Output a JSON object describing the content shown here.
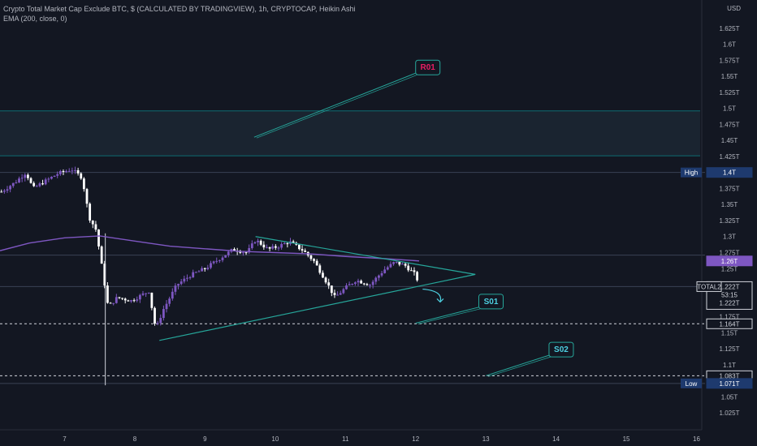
{
  "legend": {
    "title": "Crypto Total Market Cap Exclude BTC, $ (CALCULATED BY TRADINGVIEW), 1h, CRYPTOCAP, Heikin Ashi",
    "indicator": "EMA (200, close, 0)"
  },
  "colors": {
    "background": "#131722",
    "candle_up": "#7e57c2",
    "candle_down": "#ffffff",
    "ema": "#7e57c2",
    "trend": "#26a69a",
    "zone": "#0e6b73",
    "r01": "#e91e63",
    "s_label": "#4dd0e1"
  },
  "chart_data": {
    "type": "candlestick",
    "y_axis": {
      "unit": "USD",
      "range": [
        1.005,
        1.65
      ],
      "ticks": [
        "1.625T",
        "1.6T",
        "1.575T",
        "1.55T",
        "1.525T",
        "1.5T",
        "1.475T",
        "1.45T",
        "1.425T",
        "1.4T",
        "1.375T",
        "1.35T",
        "1.325T",
        "1.3T",
        "1.275T",
        "1.25T",
        "1.225T",
        "1.2T",
        "1.175T",
        "1.15T",
        "1.125T",
        "1.1T",
        "1.075T",
        "1.05T",
        "1.025T"
      ],
      "tick_values": [
        1.625,
        1.6,
        1.575,
        1.55,
        1.525,
        1.5,
        1.475,
        1.45,
        1.425,
        1.4,
        1.375,
        1.35,
        1.325,
        1.3,
        1.275,
        1.25,
        1.225,
        1.2,
        1.175,
        1.15,
        1.125,
        1.1,
        1.075,
        1.05,
        1.025
      ]
    },
    "x_axis": {
      "ticks": [
        "7",
        "8",
        "9",
        "10",
        "11",
        "12",
        "13",
        "14",
        "15",
        "16"
      ],
      "tick_positions": [
        7,
        8,
        9,
        10,
        11,
        12,
        13,
        14,
        15,
        16
      ],
      "range": [
        6.08,
        16.55
      ]
    },
    "candles_keypoints": [
      [
        6.1,
        1.37
      ],
      [
        6.3,
        1.385
      ],
      [
        6.45,
        1.4
      ],
      [
        6.55,
        1.375
      ],
      [
        6.9,
        1.398
      ],
      [
        7.1,
        1.405
      ],
      [
        7.25,
        1.392
      ],
      [
        7.35,
        1.33
      ],
      [
        7.45,
        1.31
      ],
      [
        7.55,
        1.24
      ],
      [
        7.62,
        1.19
      ],
      [
        7.75,
        1.205
      ],
      [
        7.95,
        1.2
      ],
      [
        8.2,
        1.215
      ],
      [
        8.3,
        1.155
      ],
      [
        8.4,
        1.185
      ],
      [
        8.6,
        1.225
      ],
      [
        8.8,
        1.24
      ],
      [
        9.0,
        1.25
      ],
      [
        9.2,
        1.265
      ],
      [
        9.4,
        1.28
      ],
      [
        9.6,
        1.275
      ],
      [
        9.72,
        1.295
      ],
      [
        9.9,
        1.28
      ],
      [
        10.05,
        1.285
      ],
      [
        10.2,
        1.292
      ],
      [
        10.4,
        1.278
      ],
      [
        10.55,
        1.262
      ],
      [
        10.7,
        1.235
      ],
      [
        10.85,
        1.205
      ],
      [
        11.0,
        1.22
      ],
      [
        11.15,
        1.232
      ],
      [
        11.35,
        1.225
      ],
      [
        11.55,
        1.248
      ],
      [
        11.7,
        1.26
      ],
      [
        11.85,
        1.255
      ],
      [
        12.0,
        1.24
      ],
      [
        12.06,
        1.222
      ]
    ],
    "ema": {
      "name": "EMA (200, close, 0)",
      "x": [
        6.08,
        6.5,
        7.0,
        7.5,
        8.0,
        8.5,
        9.0,
        9.5,
        10.0,
        10.5,
        11.0,
        11.5,
        12.05
      ],
      "y": [
        1.278,
        1.29,
        1.298,
        1.301,
        1.293,
        1.285,
        1.281,
        1.277,
        1.275,
        1.273,
        1.269,
        1.266,
        1.262
      ]
    },
    "trendlines": [
      {
        "from": [
          9.72,
          1.3
        ],
        "to": [
          12.85,
          1.241
        ]
      },
      {
        "from": [
          8.35,
          1.138
        ],
        "to": [
          12.85,
          1.241
        ]
      }
    ],
    "zone": {
      "y_top": 1.496,
      "y_bottom": 1.426
    },
    "horizontal_lines": [
      {
        "y": 1.4,
        "style": "solid"
      },
      {
        "y": 1.271,
        "style": "solid"
      },
      {
        "y": 1.222,
        "style": "solid"
      },
      {
        "y": 1.164,
        "style": "dashed"
      },
      {
        "y": 1.083,
        "style": "dashed"
      },
      {
        "y": 1.071,
        "style": "solid"
      }
    ],
    "price_tags": [
      {
        "label": "High",
        "value": "1.4T",
        "y": 1.4
      },
      {
        "label": "",
        "value": "1.26T",
        "y": 1.262
      },
      {
        "label": "TOTAL2",
        "value": "1.222T",
        "extra": "53:15",
        "extra2": "1.222T",
        "y": 1.222
      },
      {
        "label": "",
        "value": "1.164T",
        "y": 1.164
      },
      {
        "label": "",
        "value": "1.083T",
        "y": 1.083
      },
      {
        "label": "Low",
        "value": "1.071T",
        "y": 1.071
      }
    ],
    "annotations": [
      {
        "text": "R01",
        "box": [
          12.0,
          1.565
        ],
        "line_to": [
          9.7,
          1.455
        ]
      },
      {
        "text": "S01",
        "box": [
          12.9,
          1.2
        ],
        "line_to": [
          12.0,
          1.165
        ]
      },
      {
        "text": "S02",
        "box": [
          13.9,
          1.125
        ],
        "line_to": [
          13.0,
          1.083
        ]
      }
    ],
    "arrow": {
      "from": [
        12.1,
        1.218
      ],
      "to": [
        12.35,
        1.198
      ]
    }
  }
}
